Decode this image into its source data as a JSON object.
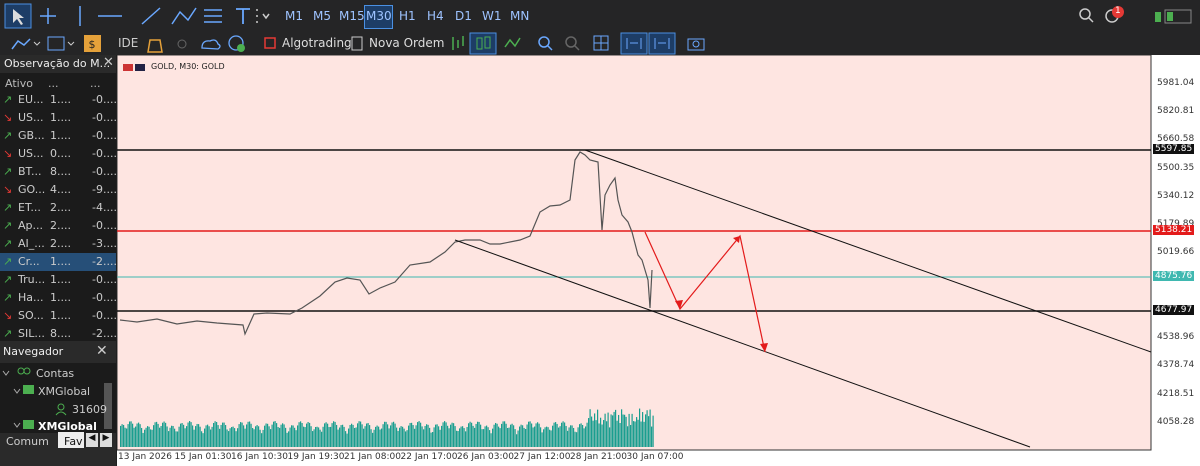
{
  "toolbar": {
    "timeframes": [
      "M1",
      "M5",
      "M15",
      "M30",
      "H1",
      "H4",
      "D1",
      "W1",
      "MN"
    ],
    "buttons": [
      "IDE",
      "Algotrading",
      "Nova Ordem"
    ],
    "notification_count": "1"
  },
  "market_watch": {
    "title": "Observação do M...",
    "columns": [
      "Ativo",
      "...",
      "..."
    ],
    "rows": [
      [
        "EU...",
        "1....",
        "-0...."
      ],
      [
        "US...",
        "1....",
        "-0...."
      ],
      [
        "GB...",
        "1....",
        "-0...."
      ],
      [
        "US...",
        "0....",
        "-0...."
      ],
      [
        "BT...",
        "8....",
        "-0...."
      ],
      [
        "GO...",
        "4....",
        "-9...."
      ],
      [
        "ET...",
        "2....",
        "-4...."
      ],
      [
        "Ap...",
        "2....",
        "-0...."
      ],
      [
        "AI_...",
        "2....",
        "-3...."
      ],
      [
        "Cr...",
        "1....",
        "-2...."
      ],
      [
        "Tru...",
        "1....",
        "-0...."
      ],
      [
        "Ha...",
        "1....",
        "-0...."
      ],
      [
        "SO...",
        "1....",
        "-0...."
      ],
      [
        "SIL...",
        "8....",
        "-2...."
      ]
    ]
  },
  "navigator": {
    "title": "Navegador",
    "items": [
      "Contas",
      "XMGlobal",
      "31609",
      "XMGlobal"
    ],
    "tabs": [
      "Comum",
      "Fav"
    ]
  },
  "chart": {
    "title": "GOLD, M30:  GOLD",
    "price_labels": [
      "5981.04",
      "5820.81",
      "5660.58",
      "5500.35",
      "5340.12",
      "5179.89",
      "5019.66",
      "4538.96",
      "4378.74",
      "4218.51",
      "4058.28"
    ],
    "level_labels": [
      "5597.85",
      "5138.21",
      "4875.76",
      "4677.97"
    ],
    "time_labels": [
      "13 Jan 2026",
      "15 Jan 01:30",
      "16 Jan 10:30",
      "19 Jan 19:30",
      "21 Jan 08:00",
      "22 Jan 17:00",
      "26 Jan 03:00",
      "27 Jan 12:00",
      "28 Jan 21:00",
      "30 Jan 07:00"
    ]
  }
}
